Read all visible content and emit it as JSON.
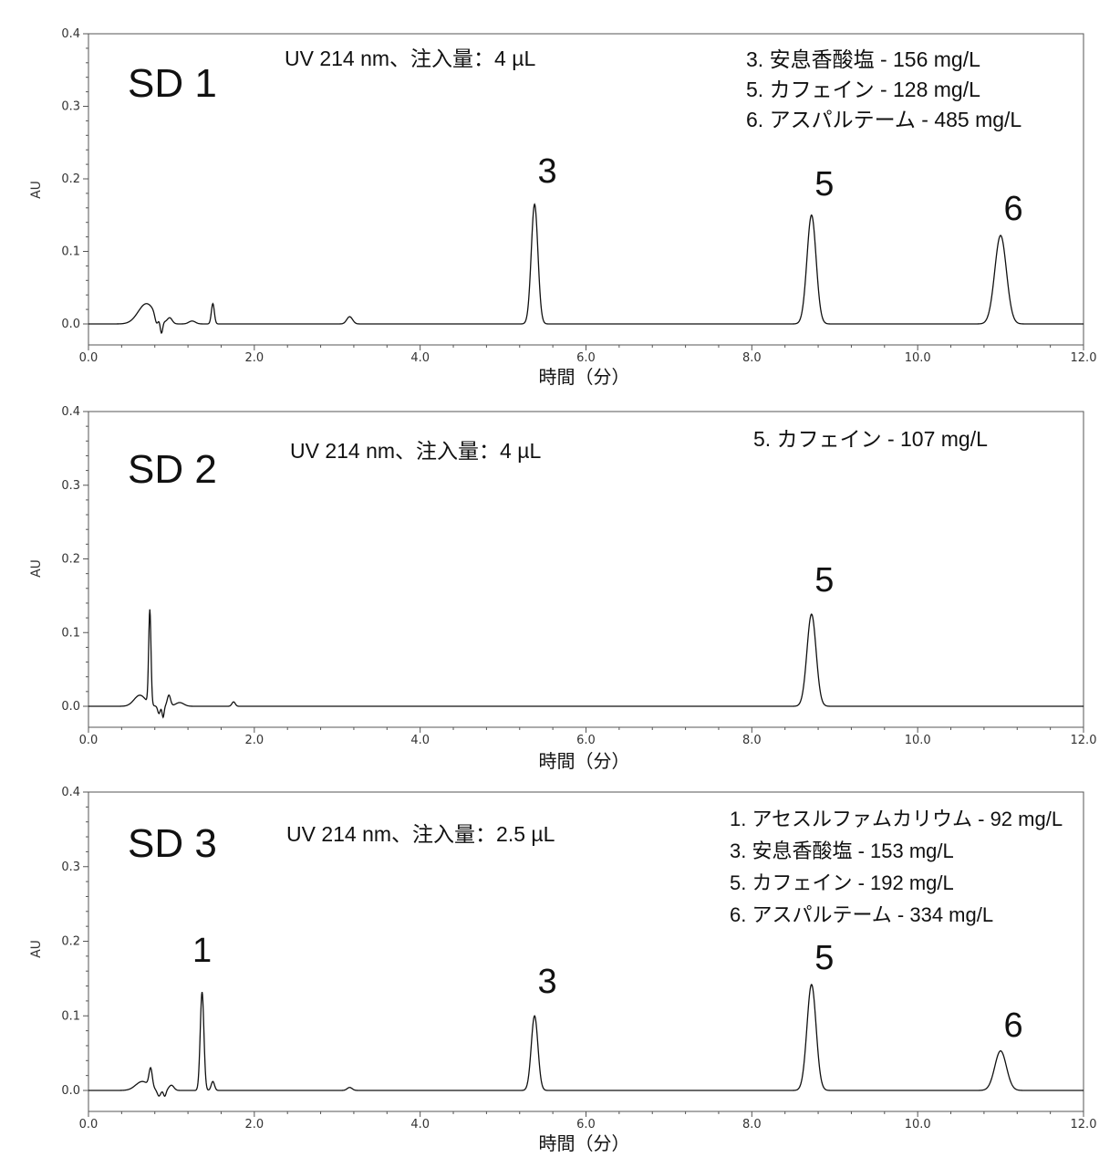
{
  "chart_data": [
    {
      "type": "line",
      "panel_label": "SD 1",
      "info": "UV 214 nm、注入量：4 µL",
      "legend": [
        "3. 安息香酸塩 - 156 mg/L",
        "5. カフェイン - 128 mg/L",
        "6. アスパルテーム - 485 mg/L"
      ],
      "xlabel": "時間（分）",
      "ylabel": "AU",
      "xlim": [
        0,
        12
      ],
      "ylim": [
        -0.03,
        0.4
      ],
      "x_ticks": [
        "0.0",
        "2.0",
        "4.0",
        "6.0",
        "8.0",
        "10.0",
        "12.0"
      ],
      "y_ticks": [
        "0.0",
        "0.1",
        "0.2",
        "0.3",
        "0.4"
      ],
      "peaks": [
        {
          "label": "3",
          "rt": 5.38,
          "height": 0.165
        },
        {
          "label": "5",
          "rt": 8.72,
          "height": 0.15
        },
        {
          "label": "6",
          "rt": 11.0,
          "height": 0.122
        }
      ],
      "minor_features": [
        {
          "rt": 0.7,
          "height": 0.028,
          "width": 0.1
        },
        {
          "rt": 0.82,
          "height": -0.012,
          "width": 0.02
        },
        {
          "rt": 0.88,
          "height": -0.018,
          "width": 0.015
        },
        {
          "rt": 0.98,
          "height": 0.008,
          "width": 0.03
        },
        {
          "rt": 1.25,
          "height": 0.004,
          "width": 0.04
        },
        {
          "rt": 1.5,
          "height": 0.028,
          "width": 0.018
        },
        {
          "rt": 3.15,
          "height": 0.01,
          "width": 0.035
        }
      ]
    },
    {
      "type": "line",
      "panel_label": "SD 2",
      "info": "UV 214 nm、注入量：4 µL",
      "legend": [
        "5. カフェイン - 107 mg/L"
      ],
      "xlabel": "時間（分）",
      "ylabel": "AU",
      "xlim": [
        0,
        12
      ],
      "ylim": [
        -0.03,
        0.4
      ],
      "x_ticks": [
        "0.0",
        "2.0",
        "4.0",
        "6.0",
        "8.0",
        "10.0",
        "12.0"
      ],
      "y_ticks": [
        "0.0",
        "0.1",
        "0.2",
        "0.3",
        "0.4"
      ],
      "peaks": [
        {
          "label": "5",
          "rt": 8.72,
          "height": 0.125
        }
      ],
      "minor_features": [
        {
          "rt": 0.62,
          "height": 0.015,
          "width": 0.07
        },
        {
          "rt": 0.74,
          "height": 0.128,
          "width": 0.014
        },
        {
          "rt": 0.85,
          "height": -0.01,
          "width": 0.015
        },
        {
          "rt": 0.9,
          "height": -0.015,
          "width": 0.012
        },
        {
          "rt": 0.97,
          "height": 0.015,
          "width": 0.02
        },
        {
          "rt": 1.1,
          "height": 0.005,
          "width": 0.05
        },
        {
          "rt": 1.75,
          "height": 0.006,
          "width": 0.02
        }
      ]
    },
    {
      "type": "line",
      "panel_label": "SD 3",
      "info": "UV 214 nm、注入量：2.5 µL",
      "legend": [
        "1. アセスルファムカリウム - 92 mg/L",
        "3. 安息香酸塩 - 153 mg/L",
        "5. カフェイン - 192 mg/L",
        "6. アスパルテーム - 334 mg/L"
      ],
      "xlabel": "時間（分）",
      "ylabel": "AU",
      "xlim": [
        0,
        12
      ],
      "ylim": [
        -0.03,
        0.4
      ],
      "x_ticks": [
        "0.0",
        "2.0",
        "4.0",
        "6.0",
        "8.0",
        "10.0",
        "12.0"
      ],
      "y_ticks": [
        "0.0",
        "0.1",
        "0.2",
        "0.3",
        "0.4"
      ],
      "peaks": [
        {
          "label": "1",
          "rt": 1.37,
          "height": 0.132
        },
        {
          "label": "3",
          "rt": 5.38,
          "height": 0.1
        },
        {
          "label": "5",
          "rt": 8.72,
          "height": 0.142
        },
        {
          "label": "6",
          "rt": 11.0,
          "height": 0.053
        }
      ],
      "minor_features": [
        {
          "rt": 0.65,
          "height": 0.012,
          "width": 0.08
        },
        {
          "rt": 0.75,
          "height": 0.025,
          "width": 0.02
        },
        {
          "rt": 0.85,
          "height": -0.008,
          "width": 0.02
        },
        {
          "rt": 0.92,
          "height": -0.008,
          "width": 0.015
        },
        {
          "rt": 1.0,
          "height": 0.007,
          "width": 0.03
        },
        {
          "rt": 1.5,
          "height": 0.012,
          "width": 0.02
        },
        {
          "rt": 3.15,
          "height": 0.004,
          "width": 0.03
        }
      ]
    }
  ]
}
